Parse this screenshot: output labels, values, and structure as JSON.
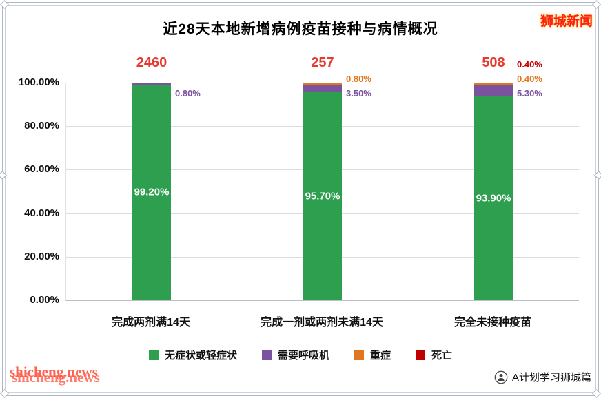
{
  "header": {
    "title": "近28天本地新增病例疫苗接种与病情概况",
    "brand": "狮城新闻"
  },
  "chart_data": {
    "type": "bar",
    "stacked": true,
    "title": "近28天本地新增病例疫苗接种与病情概况",
    "categories": [
      "完成两剂满14天",
      "完成一剂或两剂未满14天",
      "完全未接种疫苗"
    ],
    "totals": [
      "2460",
      "257",
      "508"
    ],
    "series": [
      {
        "name": "无症状或轻症状",
        "color": "#2e9e4f",
        "values": [
          99.2,
          95.7,
          93.9
        ]
      },
      {
        "name": "需要呼吸机",
        "color": "#7b52a0",
        "values": [
          0.8,
          3.5,
          5.3
        ]
      },
      {
        "name": "重症",
        "color": "#e0761f",
        "values": [
          0,
          0.8,
          0.4
        ]
      },
      {
        "name": "死亡",
        "color": "#c00000",
        "values": [
          0,
          0,
          0.4
        ]
      }
    ],
    "ylim": [
      0,
      100
    ],
    "yticks": [
      "100.00%",
      "80.00%",
      "60.00%",
      "40.00%",
      "20.00%",
      "0.00%"
    ],
    "grid": true,
    "legend_position": "bottom",
    "total_label_color": "#e8392e"
  },
  "footer": {
    "watermark": "shicheng.news",
    "credit": "A计划学习狮城篇"
  }
}
